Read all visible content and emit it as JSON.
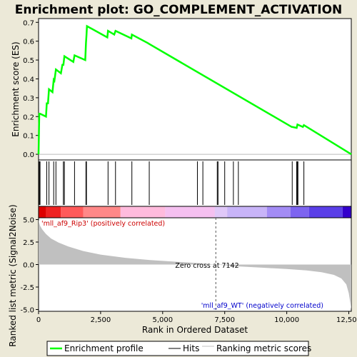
{
  "chart_data": {
    "type": "line",
    "title": "Enrichment plot: GO_COMPLEMENT_ACTIVATION",
    "es_panel": {
      "ylabel": "Enrichment score (ES)",
      "ylim": [
        -0.03,
        0.72
      ],
      "yticks": [
        0.0,
        0.1,
        0.2,
        0.3,
        0.4,
        0.5,
        0.6,
        0.7
      ],
      "ytick_labels": [
        "0.0",
        "0.1",
        "0.2",
        "0.3",
        "0.4",
        "0.5",
        "0.6",
        "0.7"
      ],
      "line_color": "#00ff00",
      "x": [
        0,
        30,
        60,
        300,
        330,
        380,
        420,
        560,
        610,
        640,
        700,
        900,
        960,
        1000,
        1040,
        1400,
        1450,
        1880,
        1910,
        1930,
        1950,
        2770,
        2800,
        3050,
        3100,
        3740,
        3760,
        4400,
        4460,
        10200,
        10220,
        10400,
        10430,
        10650,
        10690,
        12600
      ],
      "y": [
        0.0,
        0.215,
        0.215,
        0.2,
        0.27,
        0.27,
        0.345,
        0.33,
        0.395,
        0.39,
        0.45,
        0.43,
        0.475,
        0.475,
        0.52,
        0.49,
        0.525,
        0.5,
        0.59,
        0.63,
        0.68,
        0.62,
        0.655,
        0.635,
        0.655,
        0.615,
        0.635,
        0.59,
        0.585,
        0.145,
        0.145,
        0.14,
        0.158,
        0.145,
        0.155,
        0.0
      ]
    },
    "hits": [
      0,
      30,
      60,
      330,
      420,
      610,
      700,
      1000,
      1040,
      1450,
      1910,
      1930,
      2800,
      3100,
      3760,
      4460,
      6400,
      6620,
      7200,
      7230,
      7500,
      7850,
      8050,
      10220,
      10400,
      10430,
      10450,
      10690
    ],
    "heat_bar": {
      "colors": [
        "#dd0000",
        "#ee2222",
        "#ff5a5a",
        "#ff8888",
        "#ffbbdd",
        "#f5c0f0",
        "#e0c8f8",
        "#c8b4f8",
        "#a38cf5",
        "#7d64f0",
        "#5a3fe8",
        "#3300cc"
      ],
      "boundaries": [
        0,
        300,
        900,
        1800,
        3300,
        5100,
        7100,
        7600,
        9200,
        10150,
        10900,
        12250,
        12600
      ]
    },
    "metric_panel": {
      "ylabel": "Ranked list metric (Signal2Noise)",
      "ylim": [
        -5.2,
        5.2
      ],
      "yticks": [
        5.0,
        2.5,
        0.0,
        -2.5,
        -5.0
      ],
      "ytick_labels": [
        "5.0",
        "2.5",
        "0.0",
        "-2.5",
        "-5.0"
      ],
      "fill_color": "#c0c0c0",
      "x": [
        0,
        20,
        60,
        150,
        300,
        500,
        800,
        1200,
        1800,
        2500,
        3500,
        4500,
        5500,
        6500,
        7142,
        8000,
        9000,
        10000,
        10800,
        11400,
        11900,
        12200,
        12400,
        12500,
        12550,
        12600
      ],
      "y": [
        5.0,
        4.7,
        4.3,
        3.9,
        3.4,
        2.9,
        2.45,
        2.0,
        1.5,
        1.1,
        0.75,
        0.5,
        0.32,
        0.15,
        0.0,
        -0.2,
        -0.35,
        -0.5,
        -0.65,
        -0.85,
        -1.15,
        -1.55,
        -2.2,
        -3.2,
        -4.1,
        -5.0
      ],
      "annotations": {
        "positive_label": "'mll_af9_Rip3' (positively correlated)",
        "negative_label": "'mll_af9_WT' (negatively correlated)",
        "zero_cross_label": "Zero cross at 7142",
        "zero_cross_value": 7142,
        "positive_color": "#cc0000",
        "negative_color": "#0000cc"
      }
    },
    "xlabel": "Rank in Ordered Dataset",
    "xlim": [
      0,
      12600
    ],
    "xticks": [
      0,
      2500,
      5000,
      7500,
      10000,
      12500
    ],
    "xtick_labels": [
      "0",
      "2,500",
      "5,000",
      "7,500",
      "10,000",
      "12,500"
    ],
    "legend": {
      "placement": "bottom",
      "entries": [
        {
          "label": "Enrichment profile",
          "color": "#00ff00"
        },
        {
          "label": "Hits",
          "color": "#000000"
        },
        {
          "label": "Ranking metric scores",
          "color": "#c0c0c0"
        }
      ]
    }
  }
}
